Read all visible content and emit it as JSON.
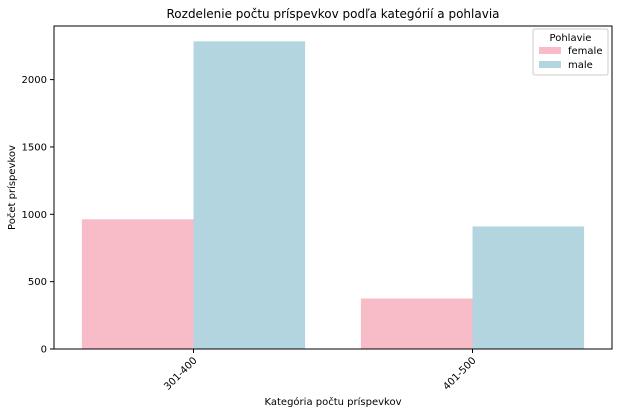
{
  "chart_data": {
    "type": "bar",
    "title": "Rozdelenie počtu príspevkov podľa kategórií a pohlavia",
    "xlabel": "Kategória počtu príspevkov",
    "ylabel": "Počet príspevkov",
    "categories": [
      "301-400",
      "401-500"
    ],
    "series": [
      {
        "name": "female",
        "color": "#f7bcc7",
        "values": [
          963,
          375
        ]
      },
      {
        "name": "male",
        "color": "#b3d5e0",
        "values": [
          2284,
          910
        ]
      }
    ],
    "ylim": [
      0,
      2398
    ],
    "yticks": [
      0,
      500,
      1000,
      1500,
      2000
    ],
    "grid": false,
    "legend": {
      "title": "Pohlavie",
      "placement": "top-right",
      "entries": [
        "female",
        "male"
      ]
    }
  }
}
